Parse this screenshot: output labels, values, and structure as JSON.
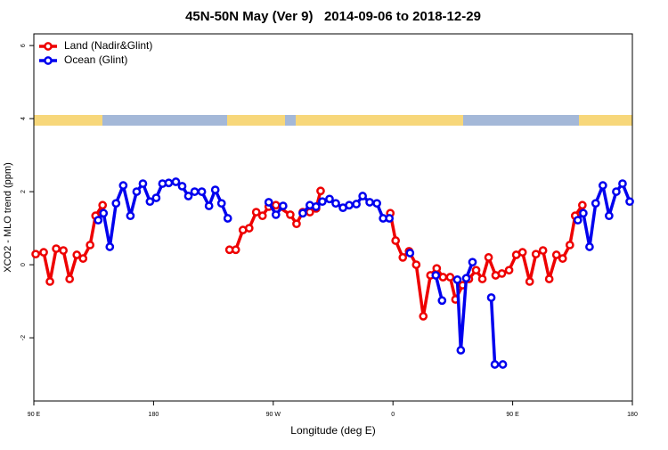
{
  "chart_data": {
    "type": "line",
    "title": "45N-50N May (Ver 9)   2014-09-06 to 2018-12-29",
    "x_label": "Longitude (deg E)",
    "y_label": "XCO2 - MLO trend (ppm)",
    "xlim": [
      -270,
      180
    ],
    "xticks": [
      {
        "value": -270,
        "label": "90 E"
      },
      {
        "value": -180,
        "label": "180"
      },
      {
        "value": -90,
        "label": "90 W"
      },
      0,
      {
        "value": 90,
        "label": "90 E"
      },
      {
        "value": 180,
        "label": "180"
      }
    ],
    "ylim": [
      -3.73,
      6.32
    ],
    "yticks": [
      -2,
      0,
      2,
      4,
      6
    ],
    "legend": "top-left",
    "series": [
      {
        "name": "Land (Nadir&Glint)",
        "color": "#ee0000",
        "x": [
          -268.6,
          -262.6,
          -257.9,
          -253.2,
          -247.8,
          -243.1,
          -237.7,
          -233.0,
          -227.7,
          -223.6,
          -218.3,
          null,
          -122.9,
          -118.2,
          -112.8,
          -108.1,
          -102.8,
          -98.1,
          -93.4,
          -88.0,
          -77.2,
          -72.5,
          -67.8,
          -62.5,
          -57.8,
          -54.4,
          null,
          -2.0,
          2.0,
          7.4,
          12.1,
          17.5,
          22.8,
          28.2,
          32.9,
          37.6,
          43.0,
          47.0,
          52.4,
          57.1,
          62.5,
          67.2,
          71.9,
          77.2,
          81.9,
          87.3,
          92.7,
          97.4,
          102.8,
          107.5,
          112.8,
          117.5,
          122.9,
          127.6,
          133.0,
          137.0,
          142.4
        ],
        "values": [
          0.29,
          0.34,
          -0.46,
          0.44,
          0.39,
          -0.39,
          0.27,
          0.17,
          0.54,
          1.34,
          1.63,
          null,
          0.41,
          0.41,
          0.95,
          1.0,
          1.44,
          1.34,
          1.59,
          1.63,
          1.37,
          1.12,
          1.44,
          1.44,
          1.54,
          2.02,
          null,
          1.41,
          0.66,
          0.2,
          0.37,
          0,
          -1.41,
          -0.29,
          -0.1,
          -0.34,
          -0.34,
          -0.95,
          -0.56,
          -0.39,
          -0.15,
          -0.39,
          0.2,
          -0.29,
          -0.24,
          -0.15,
          0.27,
          0.34,
          -0.46,
          0.29,
          0.39,
          -0.39,
          0.27,
          0.17,
          0.54,
          1.34,
          1.63
        ]
      },
      {
        "name": "Ocean (Glint)",
        "color": "#0000ee",
        "x": [
          -221.6,
          -217.6,
          -212.9,
          -208.2,
          -202.8,
          -197.4,
          -192.7,
          -188.0,
          -182.7,
          -178.0,
          -173.3,
          -168.6,
          -163.2,
          -158.5,
          -153.8,
          -149.1,
          -143.7,
          -138.3,
          -133.6,
          -128.9,
          -124.2,
          null,
          -93.4,
          -88.0,
          -82.6,
          null,
          -67.8,
          -62.5,
          -57.8,
          -53.1,
          -47.7,
          -43.0,
          -37.6,
          -32.9,
          -27.5,
          -22.8,
          -17.5,
          -12.1,
          -7.4,
          -2.7,
          null,
          12.8,
          null,
          32.2,
          36.9,
          null,
          48.4,
          51.0,
          55.1,
          59.8,
          null,
          73.9,
          76.6,
          82.6,
          null,
          139.0,
          143.1,
          147.8,
          152.4,
          157.8,
          162.5,
          167.9,
          172.6,
          178.0
        ],
        "values": [
          1.22,
          1.41,
          0.49,
          1.68,
          2.17,
          1.34,
          2.0,
          2.22,
          1.73,
          1.83,
          2.22,
          2.24,
          2.27,
          2.15,
          1.88,
          2.0,
          2.0,
          1.61,
          2.05,
          1.68,
          1.27,
          null,
          1.71,
          1.37,
          1.61,
          null,
          1.41,
          1.63,
          1.59,
          1.73,
          1.8,
          1.68,
          1.56,
          1.63,
          1.66,
          1.88,
          1.71,
          1.68,
          1.27,
          1.27,
          null,
          0.32,
          null,
          -0.29,
          -0.98,
          null,
          -0.41,
          -2.34,
          -0.37,
          0.07,
          null,
          -0.9,
          -2.73,
          -2.73,
          null,
          1.22,
          1.41,
          0.49,
          1.68,
          2.17,
          1.34,
          2.0,
          2.22,
          1.73
        ]
      }
    ]
  }
}
